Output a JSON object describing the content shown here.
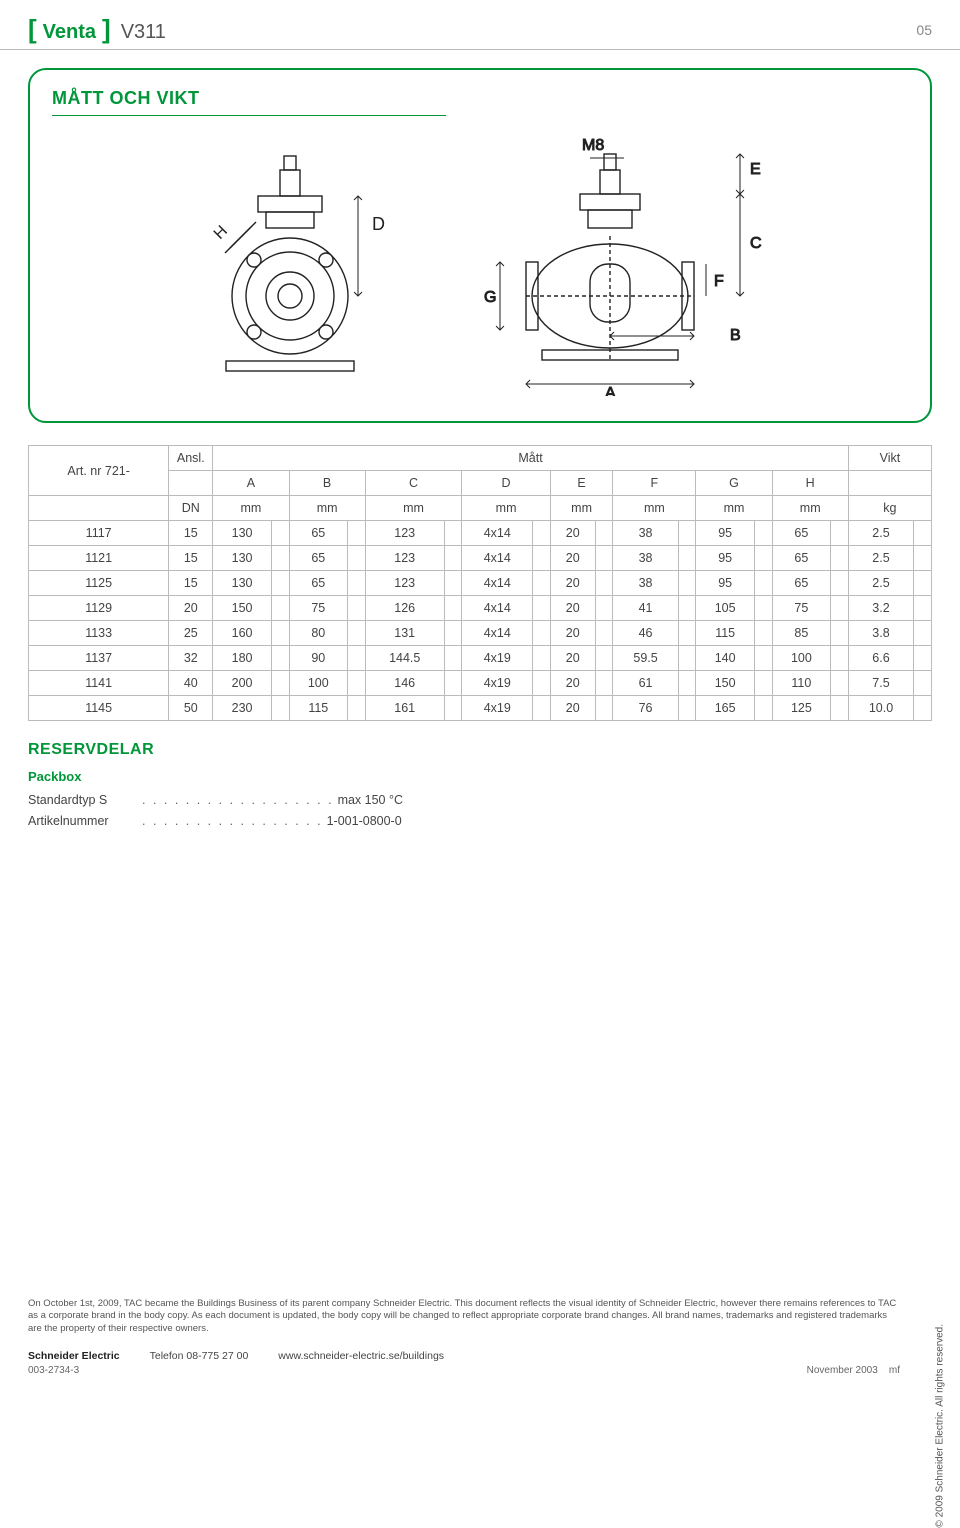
{
  "header": {
    "brand": "Venta",
    "model": "V311",
    "page_number": "05"
  },
  "panel": {
    "title": "MÅTT OCH VIKT",
    "diagram_labels": {
      "M8": "M8",
      "A": "A",
      "B": "B",
      "C": "C",
      "D": "D",
      "E": "E",
      "F": "F",
      "G": "G",
      "H": "H"
    }
  },
  "table": {
    "header": {
      "art_nr": "Art. nr 721-",
      "ansl": "Ansl.",
      "matt": "Mått",
      "vikt": "Vikt",
      "sub": [
        "A",
        "B",
        "C",
        "D",
        "E",
        "F",
        "G",
        "H"
      ],
      "units_dn": "DN",
      "units_mm": "mm",
      "units_kg": "kg"
    },
    "rows": [
      {
        "art": "1117",
        "dn": "15",
        "a": "130",
        "b": "65",
        "c": "123",
        "d": "4x14",
        "e": "20",
        "f": "38",
        "g": "95",
        "h": "65",
        "kg": "2.5"
      },
      {
        "art": "1121",
        "dn": "15",
        "a": "130",
        "b": "65",
        "c": "123",
        "d": "4x14",
        "e": "20",
        "f": "38",
        "g": "95",
        "h": "65",
        "kg": "2.5"
      },
      {
        "art": "1125",
        "dn": "15",
        "a": "130",
        "b": "65",
        "c": "123",
        "d": "4x14",
        "e": "20",
        "f": "38",
        "g": "95",
        "h": "65",
        "kg": "2.5"
      },
      {
        "art": "1129",
        "dn": "20",
        "a": "150",
        "b": "75",
        "c": "126",
        "d": "4x14",
        "e": "20",
        "f": "41",
        "g": "105",
        "h": "75",
        "kg": "3.2"
      },
      {
        "art": "1133",
        "dn": "25",
        "a": "160",
        "b": "80",
        "c": "131",
        "d": "4x14",
        "e": "20",
        "f": "46",
        "g": "115",
        "h": "85",
        "kg": "3.8"
      },
      {
        "art": "1137",
        "dn": "32",
        "a": "180",
        "b": "90",
        "c": "144.5",
        "d": "4x19",
        "e": "20",
        "f": "59.5",
        "g": "140",
        "h": "100",
        "kg": "6.6"
      },
      {
        "art": "1141",
        "dn": "40",
        "a": "200",
        "b": "100",
        "c": "146",
        "d": "4x19",
        "e": "20",
        "f": "61",
        "g": "150",
        "h": "110",
        "kg": "7.5"
      },
      {
        "art": "1145",
        "dn": "50",
        "a": "230",
        "b": "115",
        "c": "161",
        "d": "4x19",
        "e": "20",
        "f": "76",
        "g": "165",
        "h": "125",
        "kg": "10.0"
      }
    ]
  },
  "reservdelar": {
    "title": "RESERVDELAR",
    "sub": "Packbox",
    "lines": [
      {
        "label": "Standardtyp S",
        "dots": ". . . . . . . . . . . . . . . . . .",
        "value": "max 150 °C"
      },
      {
        "label": "Artikelnummer",
        "dots": ". . . . . . . . . . . . . . . . .",
        "value": "1-001-0800-0"
      }
    ]
  },
  "legal": "On October 1st, 2009, TAC became the Buildings Business of its parent company Schneider Electric. This document reflects the visual identity of Schneider Electric, however there remains references to TAC as a corporate brand in the body copy. As each document is updated, the body copy will be changed to reflect appropriate corporate brand changes. All brand names, trademarks and registered trademarks are the property of their respective owners.",
  "footer": {
    "company": "Schneider Electric",
    "phone": "Telefon 08-775 27 00",
    "url": "www.schneider-electric.se/buildings",
    "doc": "003-2734-3",
    "date": "November 2003",
    "initials": "mf"
  },
  "copyright": "© 2009 Schneider Electric. All rights reserved.",
  "colors": {
    "accent": "#009639",
    "border": "#bbbbbb",
    "text": "#444444"
  }
}
